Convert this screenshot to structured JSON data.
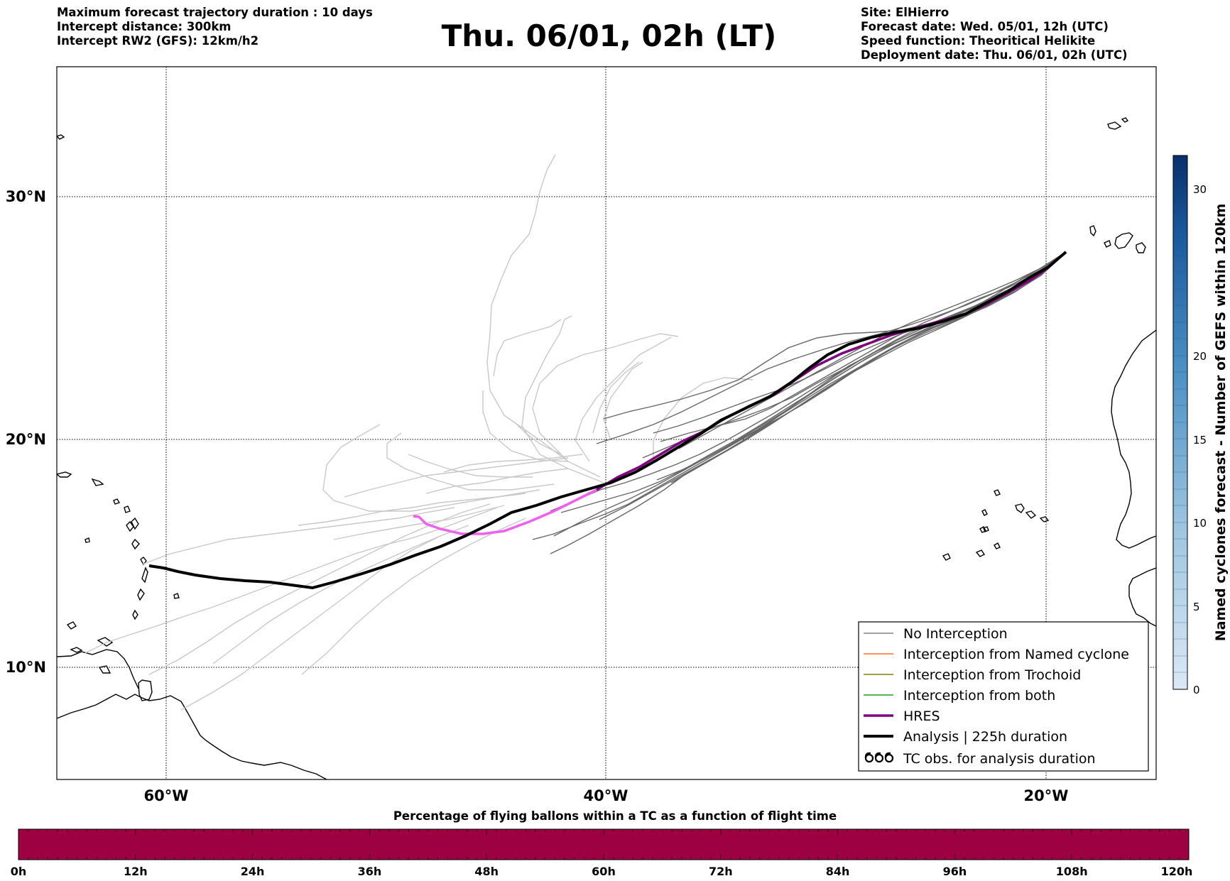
{
  "header": {
    "left_lines": [
      "Maximum forecast trajectory duration : 10 days",
      "Intercept distance: 300km",
      "Intercept RW2 (GFS):  12km/h2"
    ],
    "title": "Thu. 06/01, 02h (LT)",
    "right_lines": [
      "Site: ElHierro",
      "Forecast date: Wed. 05/01, 12h (UTC)",
      "Speed function: Theoritical Helikite",
      "Deployment date: Thu. 06/01, 02h (UTC)"
    ]
  },
  "map": {
    "lat_labels": [
      "30°N",
      "20°N",
      "10°N"
    ],
    "lon_labels": [
      "60°W",
      "40°W",
      "20°W"
    ],
    "legend": [
      {
        "label": "No Interception",
        "color": "#808080",
        "style": "thin-line"
      },
      {
        "label": "Interception from Named cyclone",
        "color": "#ff6a2a",
        "style": "thin-line"
      },
      {
        "label": "Interception from Trochoid",
        "color": "#808000",
        "style": "thin-line"
      },
      {
        "label": "Interception from both",
        "color": "#1f9e1f",
        "style": "thin-line"
      },
      {
        "label": "HRES",
        "color": "#800080",
        "style": "thick-line"
      },
      {
        "label": "Analysis | 225h duration",
        "color": "#000000",
        "style": "thick-line"
      },
      {
        "label": "TC obs. for analysis duration",
        "color": "#000000",
        "style": "tc-symbols"
      }
    ],
    "colors": {
      "no_interception": "#666666",
      "forecast_light": "#c8c8c8",
      "hres": "#800080",
      "hres_forecast": "#f060f0",
      "analysis": "#000000"
    }
  },
  "colorbar": {
    "title": "Named cyclones forecast - Number of GEFS within 120km",
    "ticks": [
      "0",
      "5",
      "10",
      "15",
      "20",
      "30"
    ],
    "colors": [
      "#dbe8f6",
      "#08306b"
    ]
  },
  "bottom_bar": {
    "title": "Percentage of flying ballons within a TC as a function of flight time",
    "ticks": [
      "0h",
      "12h",
      "24h",
      "36h",
      "48h",
      "60h",
      "72h",
      "84h",
      "96h",
      "108h",
      "120h"
    ],
    "fill_color": "#9e0142"
  }
}
